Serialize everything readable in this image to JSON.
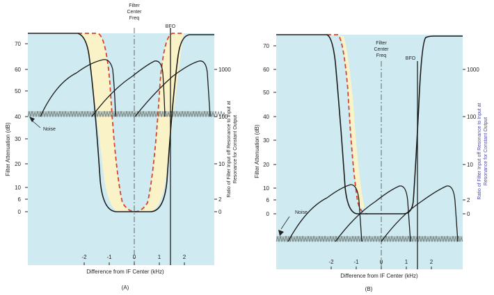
{
  "panels": [
    {
      "id": "A",
      "caption": "(A)",
      "y_left_label": "Filter Attenuation (dB)",
      "y_right_label_line1": "Ratio of Filter Input off Resonance to Input at",
      "y_right_label_line2": "Resonance for Constant Output",
      "x_label": "Difference from IF Center (kHz)",
      "center_label_line1": "Filter",
      "center_label_line2": "Center",
      "center_label_line3": "Freq",
      "bfo_label": "BFO",
      "noise_label": "Noise",
      "x_ticks": [
        "-2",
        "-1",
        "0",
        "1",
        "2"
      ],
      "y_left_ticks": [
        "70",
        "60",
        "50",
        "40",
        "30",
        "20",
        "10",
        "6",
        "0"
      ],
      "y_right_ticks": [
        "1000",
        "100",
        "10",
        "2",
        "0"
      ]
    },
    {
      "id": "B",
      "caption": "(B)",
      "y_left_label": "Filter Attenuation (dB)",
      "y_right_label_line1": "Ratio of Filter Input off Resonance to Input at",
      "y_right_label_line2": "Resonance for Constant Output",
      "x_label": "Difference from IF Center (kHz)",
      "center_label_line1": "Filter",
      "center_label_line2": "Center",
      "center_label_line3": "Freq",
      "bfo_label": "BFO",
      "noise_label": "Noise",
      "x_ticks": [
        "-2",
        "-1",
        "0",
        "1",
        "2"
      ],
      "y_left_ticks": [
        "70",
        "60",
        "50",
        "40",
        "30",
        "20",
        "10",
        "6",
        "0"
      ],
      "y_right_ticks": [
        "1000",
        "100",
        "10",
        "2",
        "0"
      ]
    }
  ],
  "colors": {
    "sky": "#cfeaf0",
    "passband": "#fbf3c8",
    "filter_curve": "#1a1a1a",
    "dashed_curve": "#d8432a",
    "grass": "#6f7f7f",
    "right_label_b": "#4a47a8"
  }
}
